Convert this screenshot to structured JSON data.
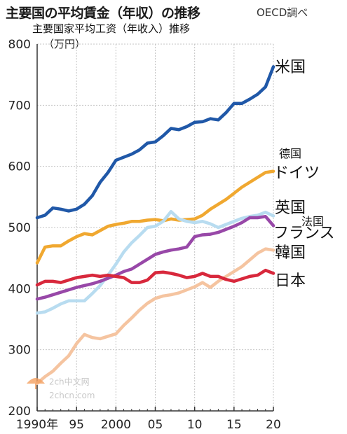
{
  "header": {
    "title": "主要国の平均賃金（年収）の推移",
    "source": "OECD調べ",
    "subtitle": "主要国家平均工资（年收入）推移",
    "unit": "（万円）"
  },
  "watermark": {
    "text1": "2ch中文网",
    "text2": "2chcn.com"
  },
  "chart_data": {
    "type": "line",
    "title": "主要国の平均賃金（年収）の推移",
    "ylabel": "（万円）",
    "ylim": [
      200,
      800
    ],
    "xlim": [
      1990,
      2020
    ],
    "y_ticks": [
      200,
      300,
      400,
      500,
      600,
      700,
      800
    ],
    "x_ticks": [
      {
        "value": 1990,
        "label": "1990年"
      },
      {
        "value": 1995,
        "label": "95"
      },
      {
        "value": 2000,
        "label": "2000"
      },
      {
        "value": 2005,
        "label": "05"
      },
      {
        "value": 2010,
        "label": "10"
      },
      {
        "value": 2015,
        "label": "15"
      },
      {
        "value": 2020,
        "label": "20"
      }
    ],
    "grid": true,
    "x": [
      1990,
      1991,
      1992,
      1993,
      1994,
      1995,
      1996,
      1997,
      1998,
      1999,
      2000,
      2001,
      2002,
      2003,
      2004,
      2005,
      2006,
      2007,
      2008,
      2009,
      2010,
      2011,
      2012,
      2013,
      2014,
      2015,
      2016,
      2017,
      2018,
      2019,
      2020
    ],
    "series": [
      {
        "name": "米国",
        "color": "#2058a8",
        "values": [
          516,
          520,
          532,
          530,
          527,
          530,
          538,
          552,
          574,
          590,
          610,
          615,
          620,
          627,
          638,
          640,
          650,
          662,
          660,
          665,
          672,
          673,
          678,
          676,
          688,
          703,
          703,
          710,
          718,
          730,
          763
        ]
      },
      {
        "name": "ドイツ",
        "color": "#f0a830",
        "extra_label": "德国",
        "values": [
          442,
          468,
          470,
          470,
          478,
          485,
          490,
          488,
          495,
          502,
          505,
          507,
          510,
          510,
          512,
          513,
          511,
          514,
          512,
          513,
          514,
          520,
          530,
          538,
          546,
          556,
          566,
          574,
          582,
          590,
          592
        ]
      },
      {
        "name": "英国",
        "color": "#b8dcf0",
        "values": [
          360,
          362,
          368,
          375,
          380,
          380,
          380,
          392,
          405,
          422,
          440,
          460,
          475,
          487,
          500,
          502,
          510,
          526,
          514,
          510,
          508,
          510,
          506,
          500,
          505,
          510,
          515,
          518,
          520,
          525,
          519
        ]
      },
      {
        "name": "フランス",
        "color": "#9848a8",
        "extra_label": "法国",
        "values": [
          383,
          386,
          390,
          394,
          398,
          402,
          405,
          408,
          412,
          417,
          422,
          428,
          432,
          440,
          448,
          456,
          460,
          463,
          465,
          468,
          485,
          488,
          489,
          492,
          497,
          502,
          508,
          516,
          516,
          518,
          503
        ]
      },
      {
        "name": "韓国",
        "color": "#f5c4a0",
        "values": [
          245,
          256,
          265,
          278,
          290,
          310,
          325,
          320,
          318,
          322,
          326,
          340,
          352,
          365,
          376,
          384,
          388,
          390,
          393,
          398,
          403,
          410,
          402,
          412,
          420,
          428,
          436,
          447,
          458,
          465,
          463
        ]
      },
      {
        "name": "日本",
        "color": "#d8283c",
        "values": [
          406,
          412,
          412,
          410,
          414,
          418,
          420,
          422,
          420,
          422,
          420,
          418,
          410,
          410,
          414,
          426,
          427,
          425,
          422,
          418,
          420,
          425,
          420,
          420,
          415,
          412,
          416,
          420,
          422,
          430,
          425
        ]
      }
    ]
  }
}
